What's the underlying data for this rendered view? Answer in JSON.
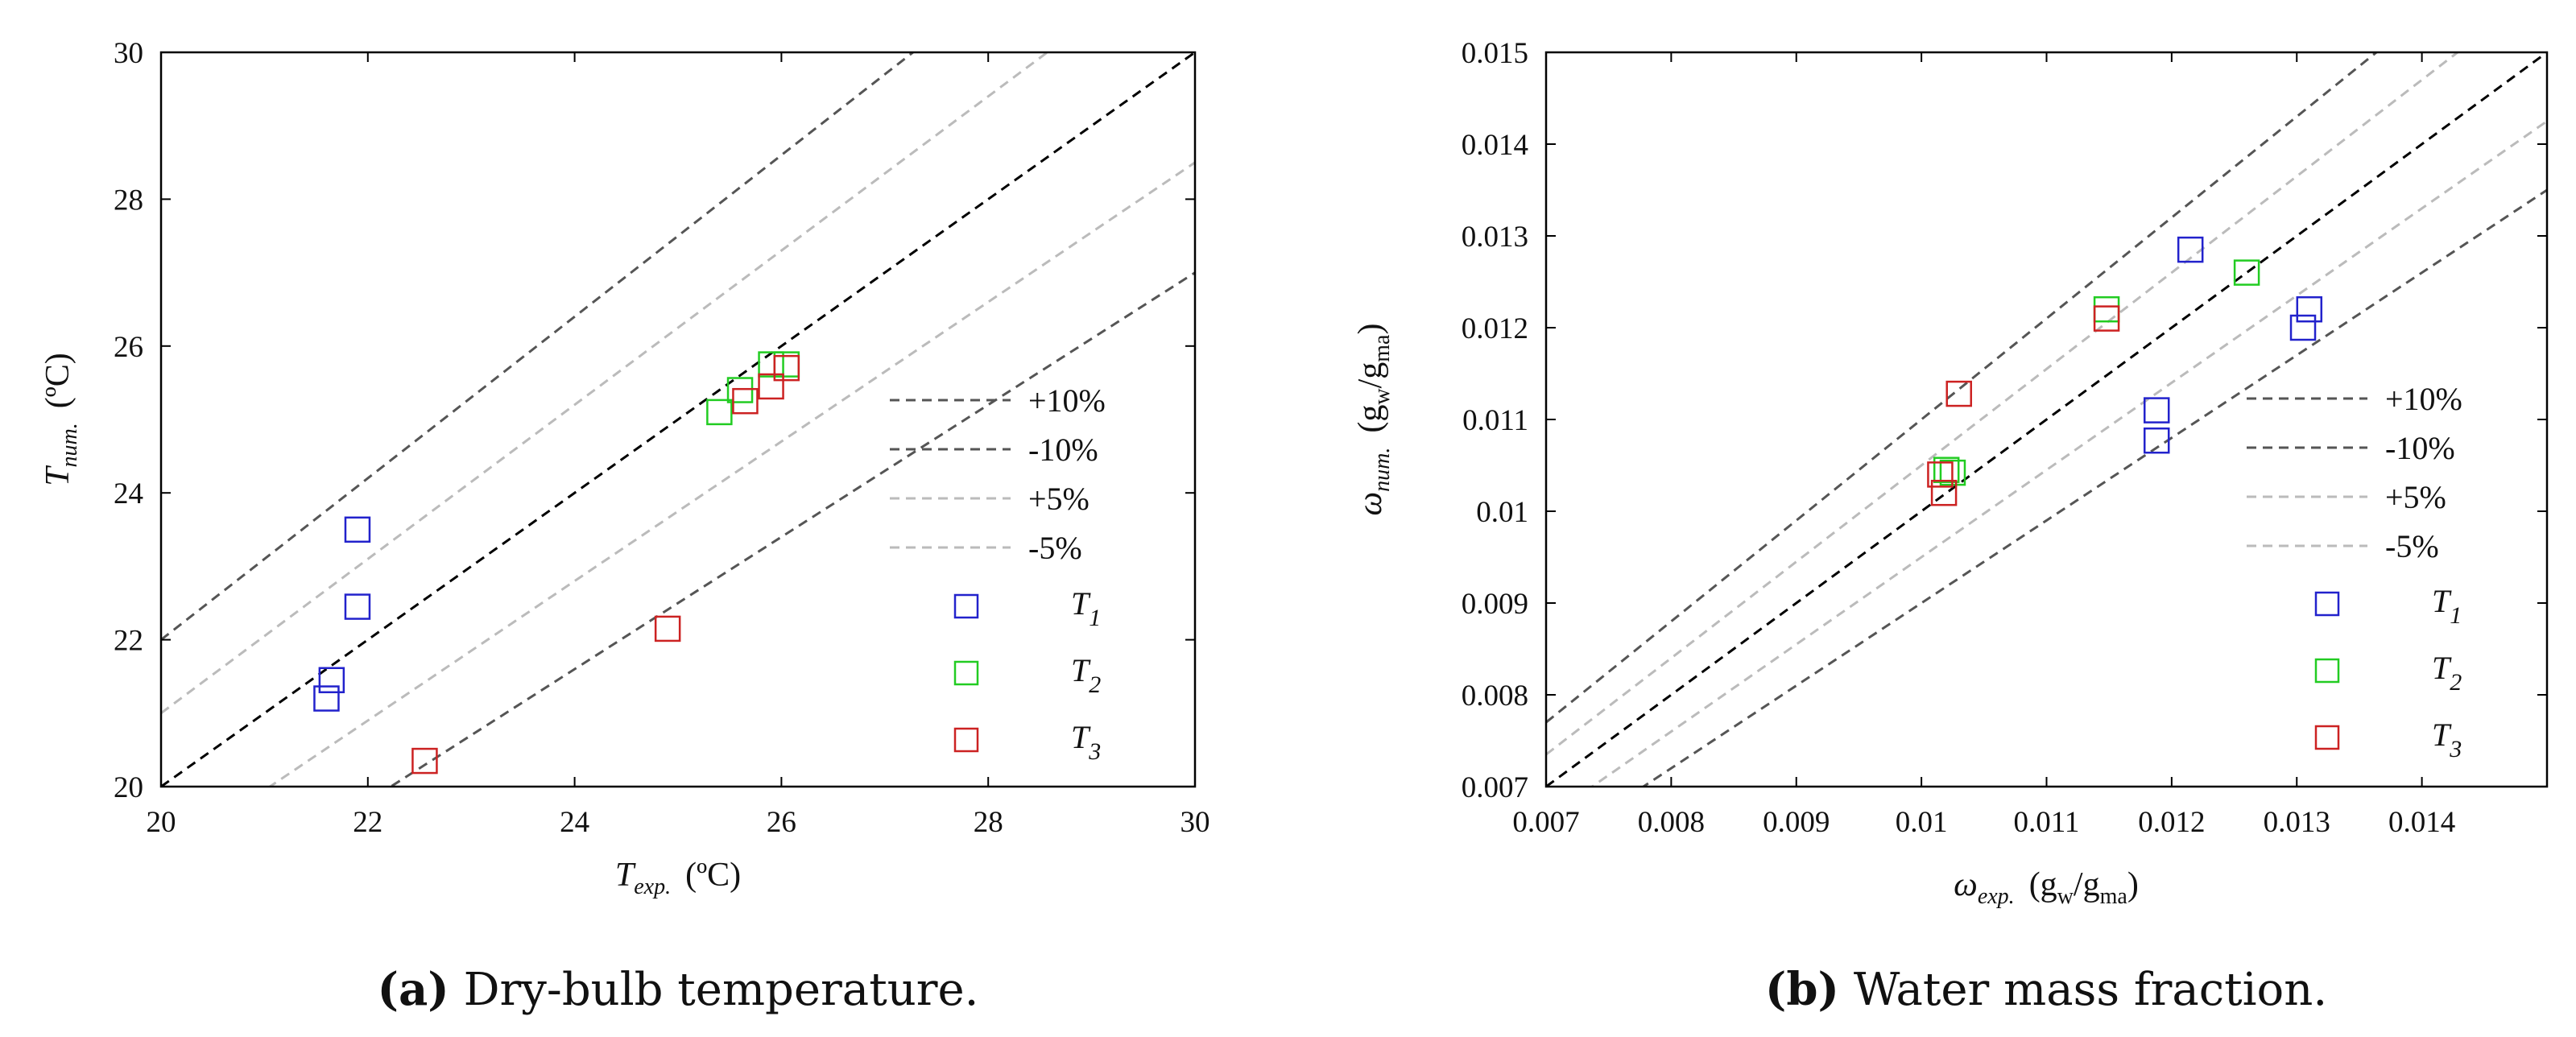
{
  "chart_data": [
    {
      "type": "scatter",
      "caption_letter": "(a)",
      "caption_text": " Dry-bulb temperature.",
      "xlabel": {
        "symbol": "T",
        "sub": "exp.",
        "unit": "(ºC)"
      },
      "ylabel": {
        "symbol": "T",
        "sub": "num.",
        "unit": "(ºC)"
      },
      "xlim": [
        20,
        30
      ],
      "ylim": [
        20,
        30
      ],
      "xticks": [
        20,
        22,
        24,
        26,
        28,
        30
      ],
      "yticks": [
        20,
        22,
        24,
        26,
        28,
        30
      ],
      "xtick_labels": [
        "20",
        "22",
        "24",
        "26",
        "28",
        "30"
      ],
      "ytick_labels": [
        "20",
        "22",
        "24",
        "26",
        "28",
        "30"
      ],
      "reference_lines": [
        {
          "name": "identity",
          "factor": 1.0,
          "color": "#000000"
        },
        {
          "name": "+10%",
          "factor": 1.1,
          "color": "#555555"
        },
        {
          "name": "-10%",
          "factor": 0.9,
          "color": "#555555"
        },
        {
          "name": "+5%",
          "factor": 1.05,
          "color": "#bbbbbb"
        },
        {
          "name": "-5%",
          "factor": 0.95,
          "color": "#bbbbbb"
        }
      ],
      "legend_lines": [
        {
          "label": "+10%",
          "color": "#555555"
        },
        {
          "label": "-10%",
          "color": "#555555"
        },
        {
          "label": "+5%",
          "color": "#bbbbbb"
        },
        {
          "label": "-5%",
          "color": "#bbbbbb"
        }
      ],
      "series": [
        {
          "name": "T",
          "sub": "1",
          "color": "#2222cc",
          "points": [
            [
              21.9,
              23.5
            ],
            [
              21.9,
              22.45
            ],
            [
              21.65,
              21.45
            ],
            [
              21.6,
              21.2
            ]
          ]
        },
        {
          "name": "T",
          "sub": "2",
          "color": "#22cc22",
          "points": [
            [
              25.4,
              25.1
            ],
            [
              25.6,
              25.4
            ],
            [
              25.9,
              25.75
            ],
            [
              26.05,
              25.75
            ]
          ]
        },
        {
          "name": "T",
          "sub": "3",
          "color": "#cc2222",
          "points": [
            [
              25.65,
              25.25
            ],
            [
              25.9,
              25.45
            ],
            [
              26.05,
              25.7
            ],
            [
              24.9,
              22.15
            ],
            [
              22.55,
              20.35
            ]
          ]
        }
      ]
    },
    {
      "type": "scatter",
      "caption_letter": "(b)",
      "caption_text": " Water mass fraction.",
      "xlabel": {
        "symbol": "ω",
        "sub": "exp.",
        "unit_open": "(g",
        "unit_sub1": "w",
        "unit_mid": "/g",
        "unit_sub2": "ma",
        "unit_close": ")"
      },
      "ylabel": {
        "symbol": "ω",
        "sub": "num.",
        "unit_open": "(g",
        "unit_sub1": "w",
        "unit_mid": "/g",
        "unit_sub2": "ma",
        "unit_close": ")"
      },
      "xlim": [
        0.007,
        0.015
      ],
      "ylim": [
        0.007,
        0.015
      ],
      "xticks": [
        0.007,
        0.008,
        0.009,
        0.01,
        0.011,
        0.012,
        0.013,
        0.014
      ],
      "yticks": [
        0.007,
        0.008,
        0.009,
        0.01,
        0.011,
        0.012,
        0.013,
        0.014,
        0.015
      ],
      "xtick_labels": [
        "0.007",
        "0.008",
        "0.009",
        "0.01",
        "0.011",
        "0.012",
        "0.013",
        "0.014"
      ],
      "ytick_labels": [
        "0.007",
        "0.008",
        "0.009",
        "0.01",
        "0.011",
        "0.012",
        "0.013",
        "0.014",
        "0.015"
      ],
      "reference_lines": [
        {
          "name": "identity",
          "factor": 1.0,
          "color": "#000000"
        },
        {
          "name": "+10%",
          "factor": 1.1,
          "color": "#555555"
        },
        {
          "name": "-10%",
          "factor": 0.9,
          "color": "#555555"
        },
        {
          "name": "+5%",
          "factor": 1.05,
          "color": "#bbbbbb"
        },
        {
          "name": "-5%",
          "factor": 0.95,
          "color": "#bbbbbb"
        }
      ],
      "legend_lines": [
        {
          "label": "+10%",
          "color": "#555555"
        },
        {
          "label": "-10%",
          "color": "#555555"
        },
        {
          "label": "+5%",
          "color": "#bbbbbb"
        },
        {
          "label": "-5%",
          "color": "#bbbbbb"
        }
      ],
      "series": [
        {
          "name": "T",
          "sub": "1",
          "color": "#2222cc",
          "points": [
            [
              0.01215,
              0.01285
            ],
            [
              0.0131,
              0.0122
            ],
            [
              0.01305,
              0.012
            ],
            [
              0.01188,
              0.0111
            ],
            [
              0.01188,
              0.01077
            ]
          ]
        },
        {
          "name": "T",
          "sub": "2",
          "color": "#22cc22",
          "points": [
            [
              0.0126,
              0.0126
            ],
            [
              0.01148,
              0.0122
            ],
            [
              0.0102,
              0.01045
            ],
            [
              0.01025,
              0.01042
            ]
          ]
        },
        {
          "name": "T",
          "sub": "3",
          "color": "#cc2222",
          "points": [
            [
              0.01148,
              0.0121
            ],
            [
              0.0103,
              0.01128
            ],
            [
              0.01015,
              0.0104
            ],
            [
              0.01018,
              0.0102
            ]
          ]
        }
      ]
    }
  ]
}
